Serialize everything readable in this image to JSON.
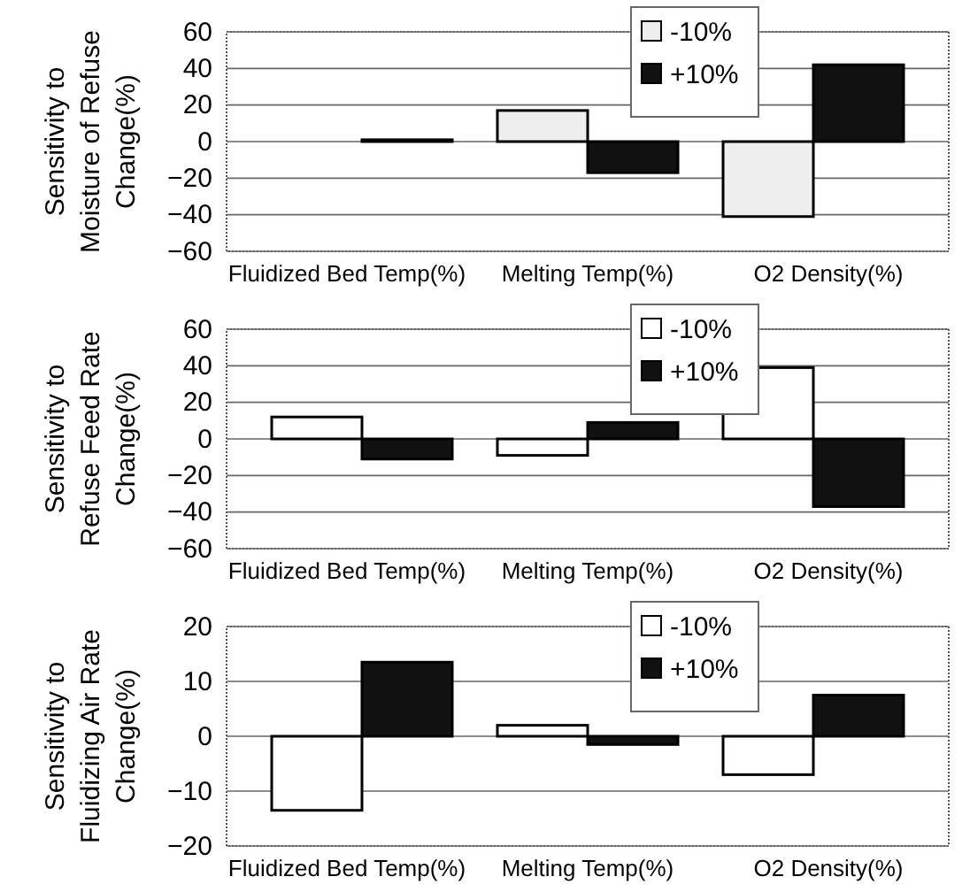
{
  "chart_data": [
    {
      "type": "bar",
      "ylabel": "Sensitivity to Moisture of Refuse Change(%)",
      "categories": [
        "Fluidized Bed Temp(%)",
        "Melting Temp(%)",
        "O2 Density(%)"
      ],
      "series": [
        {
          "name": "-10%",
          "color": "#eeeeee",
          "values": [
            0,
            17,
            -41
          ]
        },
        {
          "name": "+10%",
          "color": "#111111",
          "values": [
            1,
            -17,
            42
          ]
        }
      ],
      "ylim": [
        -60,
        60
      ],
      "yticks": [
        -60,
        -40,
        -20,
        0,
        20,
        40,
        60
      ],
      "grid": "y",
      "legend": "top"
    },
    {
      "type": "bar",
      "ylabel": "Sensitivity to Refuse Feed Rate Change(%)",
      "categories": [
        "Fluidized Bed Temp(%)",
        "Melting Temp(%)",
        "O2 Density(%)"
      ],
      "series": [
        {
          "name": "-10%",
          "color": "#ffffff",
          "values": [
            12,
            -9,
            39
          ]
        },
        {
          "name": "+10%",
          "color": "#111111",
          "values": [
            -11,
            9,
            -37
          ]
        }
      ],
      "ylim": [
        -60,
        60
      ],
      "yticks": [
        -60,
        -40,
        -20,
        0,
        20,
        40,
        60
      ],
      "grid": "y",
      "legend": "top"
    },
    {
      "type": "bar",
      "ylabel": "Sensitivity to Fluidizing Air Rate Change(%)",
      "categories": [
        "Fluidized Bed Temp(%)",
        "Melting Temp(%)",
        "O2 Density(%)"
      ],
      "series": [
        {
          "name": "-10%",
          "color": "#ffffff",
          "values": [
            -13.5,
            2,
            -7
          ]
        },
        {
          "name": "+10%",
          "color": "#111111",
          "values": [
            13.5,
            -1.5,
            7.5
          ]
        }
      ],
      "ylim": [
        -20,
        20
      ],
      "yticks": [
        -20,
        -10,
        0,
        10,
        20
      ],
      "grid": "y",
      "legend": "top"
    }
  ]
}
